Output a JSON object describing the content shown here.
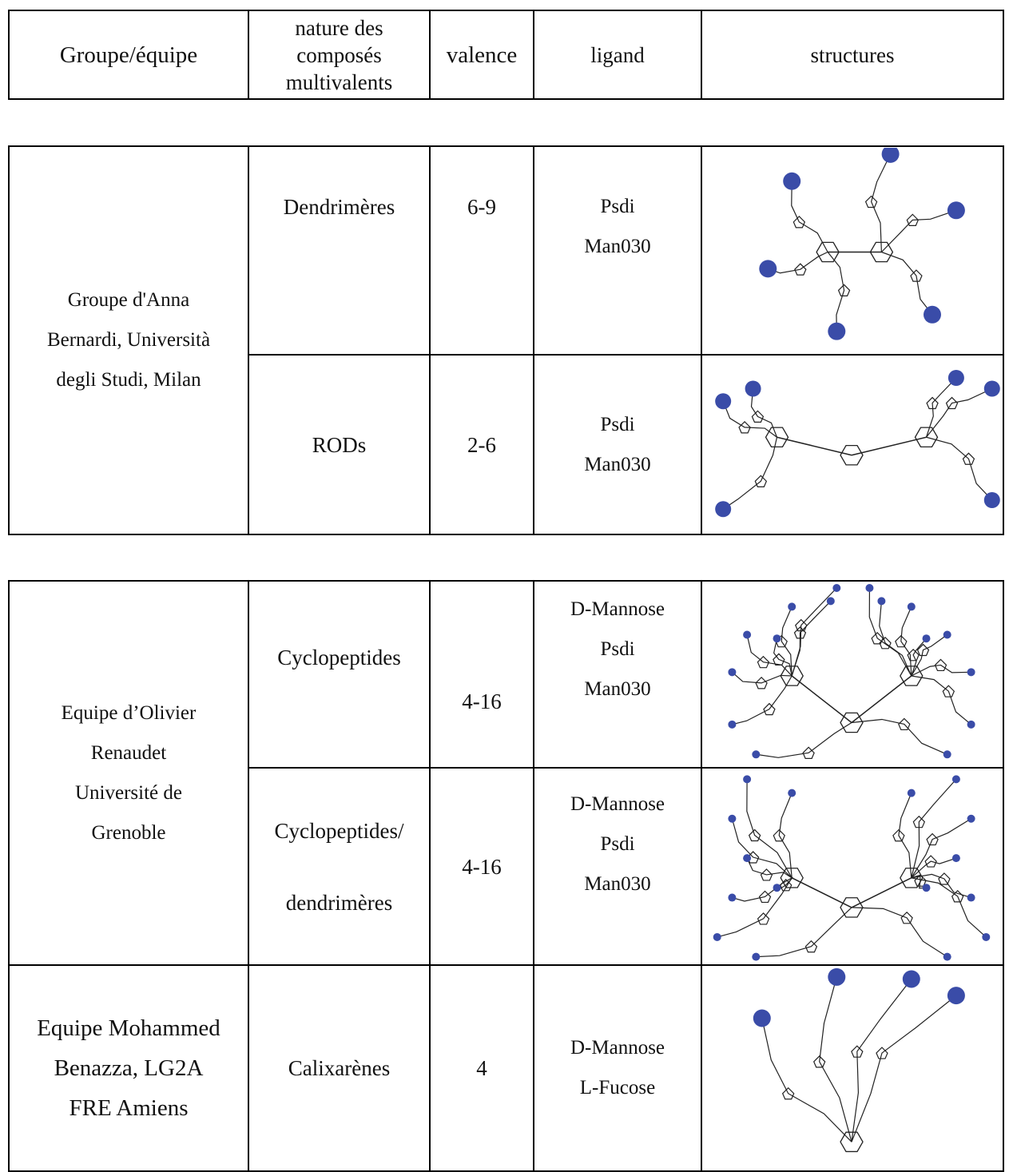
{
  "header": {
    "columns": [
      [
        "Groupe/équipe"
      ],
      [
        "nature des",
        "composés",
        "multivalents"
      ],
      [
        "valence"
      ],
      [
        "ligand"
      ],
      [
        "structures"
      ]
    ]
  },
  "tables": [
    {
      "groups": [
        {
          "name": [
            "Groupe d'Anna",
            "Bernardi, Università",
            "degli Studi, Milan"
          ],
          "rows": [
            {
              "nature": [
                "Dendrimères"
              ],
              "valence": "6-9",
              "ligand": [
                "Psdi",
                "Man030"
              ]
            },
            {
              "nature": [
                "RODs"
              ],
              "valence": "2-6",
              "ligand": [
                "Psdi",
                "Man030"
              ]
            }
          ]
        }
      ]
    },
    {
      "groups": [
        {
          "name": [
            "Equipe d’Olivier",
            "Renaudet",
            "Université de",
            "Grenoble"
          ],
          "rows": [
            {
              "nature": [
                "Cyclopeptides"
              ],
              "valence": "4-16",
              "ligand": [
                "D-Mannose",
                "Psdi",
                "Man030"
              ]
            },
            {
              "nature": [
                "Cyclopeptides/",
                "dendrimères"
              ],
              "valence": "4-16",
              "ligand": [
                "D-Mannose",
                "Psdi",
                "Man030"
              ]
            }
          ]
        },
        {
          "name": [
            "Equipe Mohammed",
            "Benazza, LG2A",
            "FRE Amiens"
          ],
          "rows": [
            {
              "nature": [
                "Calixarènes"
              ],
              "valence": "4",
              "ligand": [
                "D-Mannose",
                "L-Fucose"
              ]
            }
          ]
        }
      ]
    }
  ]
}
